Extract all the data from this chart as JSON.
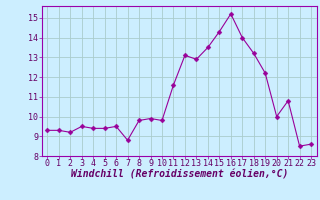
{
  "x": [
    0,
    1,
    2,
    3,
    4,
    5,
    6,
    7,
    8,
    9,
    10,
    11,
    12,
    13,
    14,
    15,
    16,
    17,
    18,
    19,
    20,
    21,
    22,
    23
  ],
  "y": [
    9.3,
    9.3,
    9.2,
    9.5,
    9.4,
    9.4,
    9.5,
    8.8,
    9.8,
    9.9,
    9.8,
    11.6,
    13.1,
    12.9,
    13.5,
    14.3,
    15.2,
    14.0,
    13.2,
    12.2,
    10.0,
    10.8,
    8.5,
    8.6
  ],
  "line_color": "#990099",
  "marker": "D",
  "marker_size": 2.5,
  "bg_color": "#cceeff",
  "grid_color": "#aacccc",
  "xlabel": "Windchill (Refroidissement éolien,°C)",
  "xlabel_fontsize": 7,
  "ylim": [
    8,
    15.6
  ],
  "xlim": [
    -0.5,
    23.5
  ],
  "yticks": [
    8,
    9,
    10,
    11,
    12,
    13,
    14,
    15
  ],
  "xticks": [
    0,
    1,
    2,
    3,
    4,
    5,
    6,
    7,
    8,
    9,
    10,
    11,
    12,
    13,
    14,
    15,
    16,
    17,
    18,
    19,
    20,
    21,
    22,
    23
  ],
  "tick_fontsize": 6,
  "spine_color": "#9900aa"
}
